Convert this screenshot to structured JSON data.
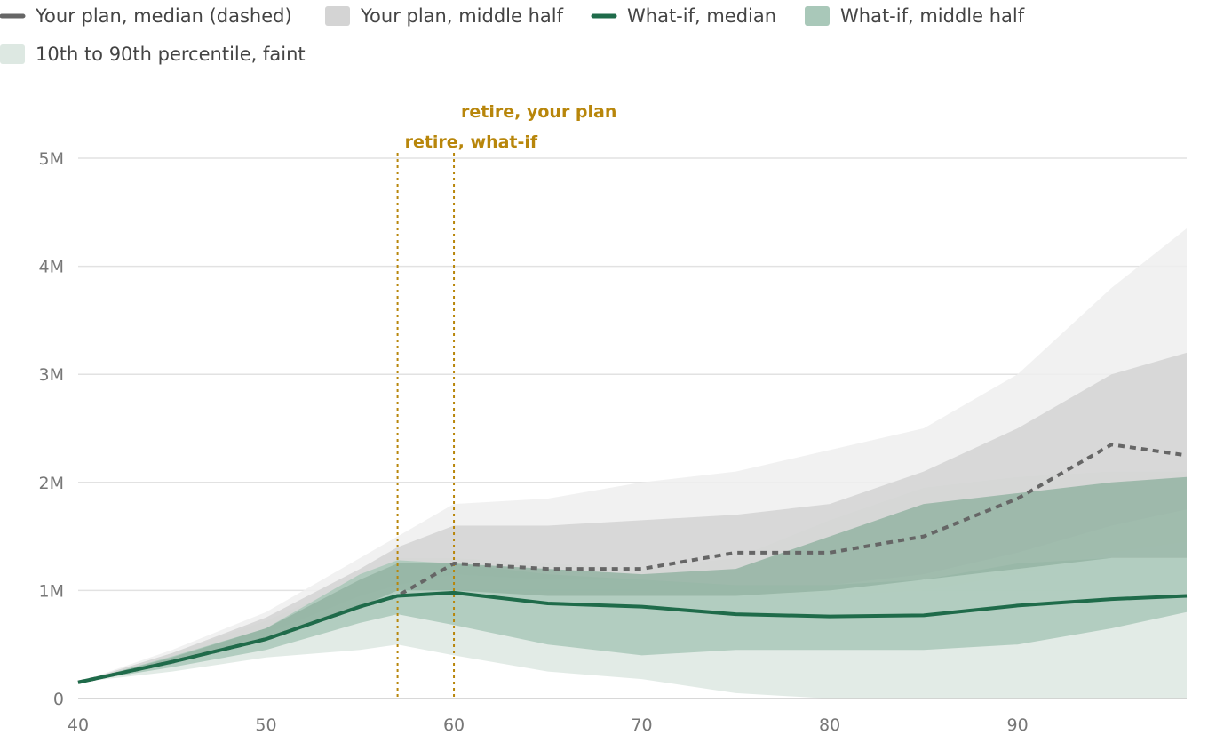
{
  "chart_data": {
    "type": "area",
    "title": "",
    "xlabel": "",
    "ylabel": "",
    "xlim": [
      40,
      99
    ],
    "ylim": [
      0,
      5000000
    ],
    "x_ticks": [
      40,
      50,
      60,
      70,
      80,
      90
    ],
    "y_ticks": [
      0,
      1000000,
      2000000,
      3000000,
      4000000,
      5000000
    ],
    "x_tick_labels": [
      "40",
      "50",
      "60",
      "70",
      "80",
      "90"
    ],
    "y_tick_labels": [
      "0",
      "1M",
      "2M",
      "3M",
      "4M",
      "5M"
    ],
    "grid": "horizontal",
    "legend_position": "top-left",
    "legend": [
      {
        "label": "Your plan, median (dashed)",
        "swatch": "line",
        "color": "#666666"
      },
      {
        "label": "Your plan, middle half",
        "swatch": "box",
        "color": "#d4d4d4"
      },
      {
        "label": "What-if, median",
        "swatch": "line",
        "color": "#1f6b4a"
      },
      {
        "label": "What-if, middle half",
        "swatch": "box",
        "color": "#a9c8b9"
      },
      {
        "label": "10th to 90th percentile, faint",
        "swatch": "box",
        "color": "#dde8e2"
      }
    ],
    "annotations": [
      {
        "label": "retire, your plan",
        "x": 60,
        "color": "#B8860B"
      },
      {
        "label": "retire, what-if",
        "x": 57,
        "color": "#B8860B"
      }
    ],
    "x": [
      40,
      45,
      50,
      55,
      57,
      60,
      65,
      70,
      75,
      80,
      85,
      90,
      95,
      99
    ],
    "series": [
      {
        "id": "plan_p10_p90",
        "low": [
          150000,
          300000,
          550000,
          850000,
          1000000,
          1100000,
          1050000,
          1000000,
          950000,
          950000,
          1000000,
          1150000,
          1350000,
          1450000
        ],
        "high": [
          150000,
          450000,
          800000,
          1300000,
          1500000,
          1800000,
          1850000,
          2000000,
          2100000,
          2300000,
          2500000,
          3000000,
          3800000,
          4350000
        ],
        "color": "#eeeeee"
      },
      {
        "id": "whatif_p10_p90",
        "low": [
          150000,
          250000,
          380000,
          450000,
          500000,
          400000,
          250000,
          180000,
          50000,
          0,
          0,
          0,
          0,
          0
        ],
        "high": [
          150000,
          420000,
          720000,
          1100000,
          1300000,
          1300000,
          1250000,
          1200000,
          1300000,
          1650000,
          1950000,
          2050000,
          2100000,
          2100000
        ],
        "color": "#dde8e2"
      },
      {
        "id": "plan_middle_half",
        "low": [
          150000,
          320000,
          600000,
          950000,
          1050000,
          1150000,
          1100000,
          1100000,
          1050000,
          1050000,
          1150000,
          1350000,
          1600000,
          1750000
        ],
        "high": [
          150000,
          420000,
          750000,
          1200000,
          1400000,
          1600000,
          1600000,
          1650000,
          1700000,
          1800000,
          2100000,
          2500000,
          3000000,
          3200000
        ],
        "color": "#d4d4d4"
      },
      {
        "id": "whatif_middle_half",
        "low": [
          150000,
          290000,
          450000,
          700000,
          780000,
          680000,
          500000,
          400000,
          450000,
          450000,
          450000,
          500000,
          650000,
          800000
        ],
        "high": [
          150000,
          390000,
          650000,
          1150000,
          1280000,
          1250000,
          1150000,
          1100000,
          1050000,
          1050000,
          1100000,
          1250000,
          1300000,
          1300000
        ],
        "color": "#a9c8b9"
      },
      {
        "id": "whatif_upper_band",
        "low": [
          150000,
          350000,
          550000,
          850000,
          1000000,
          1000000,
          950000,
          950000,
          950000,
          1000000,
          1100000,
          1200000,
          1300000,
          1300000
        ],
        "high": [
          150000,
          380000,
          650000,
          1100000,
          1250000,
          1250000,
          1200000,
          1150000,
          1200000,
          1500000,
          1800000,
          1900000,
          2000000,
          2050000
        ],
        "color": "#94b4a3"
      },
      {
        "id": "plan_median",
        "name": "Your plan, median (dashed)",
        "style": "dashed",
        "values": [
          150000,
          340000,
          550000,
          850000,
          950000,
          1250000,
          1200000,
          1200000,
          1350000,
          1350000,
          1500000,
          1850000,
          2350000,
          2250000
        ],
        "color": "#666666"
      },
      {
        "id": "whatif_median",
        "name": "What-if, median",
        "style": "solid",
        "values": [
          150000,
          340000,
          550000,
          850000,
          950000,
          980000,
          880000,
          850000,
          780000,
          760000,
          770000,
          860000,
          920000,
          950000
        ],
        "color": "#1f6b4a"
      }
    ]
  }
}
